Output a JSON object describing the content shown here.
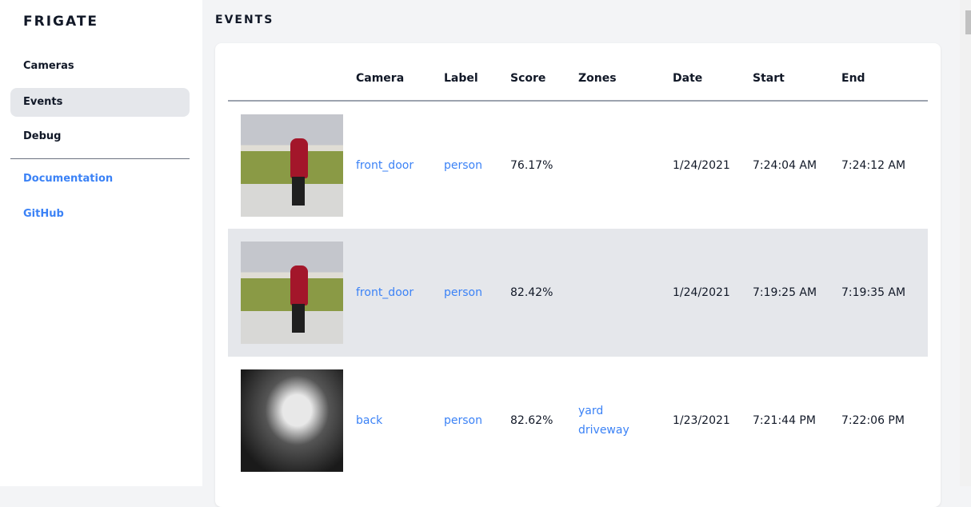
{
  "sidebar": {
    "brand": "FRIGATE",
    "items": [
      {
        "label": "Cameras"
      },
      {
        "label": "Events",
        "active": true
      },
      {
        "label": "Debug"
      }
    ],
    "links": [
      {
        "label": "Documentation"
      },
      {
        "label": "GitHub"
      }
    ]
  },
  "main": {
    "title": "EVENTS",
    "columns": [
      "",
      "Camera",
      "Label",
      "Score",
      "Zones",
      "Date",
      "Start",
      "End"
    ],
    "rows": [
      {
        "camera": "front_door",
        "label": "person",
        "score": "76.17%",
        "zones": [
          "",
          ""
        ],
        "date": "1/24/2021",
        "start": "7:24:04 AM",
        "end": "7:24:12 AM"
      },
      {
        "camera": "front_door",
        "label": "person",
        "score": "82.42%",
        "zones": [
          "",
          ""
        ],
        "date": "1/24/2021",
        "start": "7:19:25 AM",
        "end": "7:19:35 AM"
      },
      {
        "camera": "back",
        "label": "person",
        "score": "82.62%",
        "zones": [
          "yard",
          "driveway"
        ],
        "date": "1/23/2021",
        "start": "7:21:44 PM",
        "end": "7:22:06 PM"
      }
    ]
  },
  "colors": {
    "accent": "#3b82f6",
    "active_bg": "#e5e7eb"
  }
}
